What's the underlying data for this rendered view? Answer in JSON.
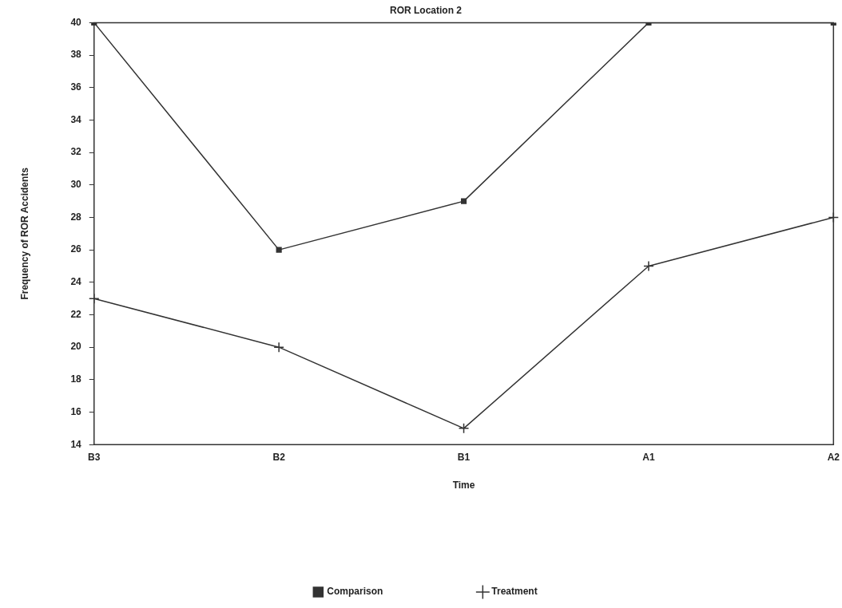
{
  "chart_data": {
    "type": "line",
    "title": "ROR Location 2",
    "xlabel": "Time",
    "ylabel": "Frequency of ROR Accidents",
    "categories": [
      "B3",
      "B2",
      "B1",
      "A1",
      "A2"
    ],
    "series": [
      {
        "name": "Comparison",
        "color": "#333333",
        "marker": "square",
        "values": [
          40,
          26,
          29,
          40,
          40
        ]
      },
      {
        "name": "Treatment",
        "color": "#333333",
        "marker": "cross",
        "values": [
          23,
          20,
          15,
          25,
          28
        ]
      }
    ],
    "ylim": [
      14,
      40
    ],
    "yticks": [
      14,
      16,
      18,
      20,
      22,
      24,
      26,
      28,
      30,
      32,
      34,
      36,
      38,
      40
    ],
    "grid": false,
    "legend": "bottom",
    "line_style": "solid"
  }
}
